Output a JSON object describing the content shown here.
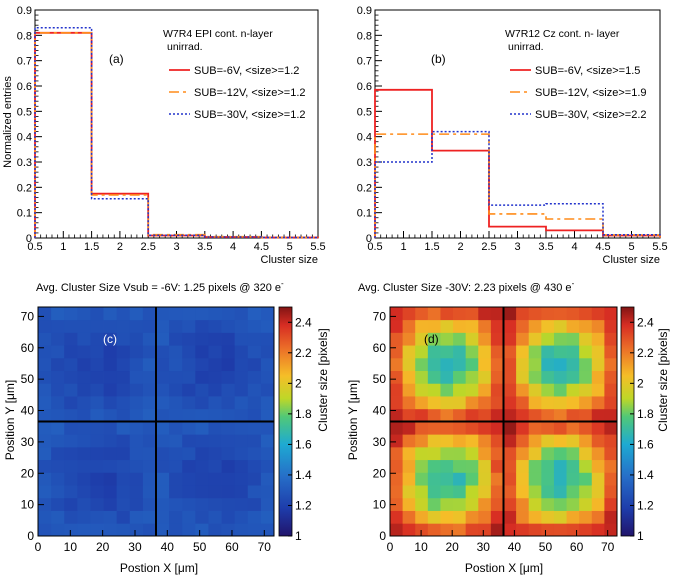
{
  "chart_data": [
    {
      "id": "a",
      "type": "histogram",
      "panel_label": "(a)",
      "annotation": [
        "W7R4 EPI cont. n-layer",
        "unirrad."
      ],
      "xlabel": "Cluster size",
      "ylabel": "Normalized entries",
      "xlim": [
        0.5,
        5.5
      ],
      "ylim": [
        0,
        0.9
      ],
      "xticks": [
        "0.5",
        "1",
        "1.5",
        "2",
        "2.5",
        "3",
        "3.5",
        "4",
        "4.5",
        "5",
        "5.5"
      ],
      "yticks": [
        "0",
        "0.1",
        "0.2",
        "0.3",
        "0.4",
        "0.5",
        "0.6",
        "0.7",
        "0.8",
        "0.9"
      ],
      "bin_edges": [
        0.5,
        1.5,
        2.5,
        3.5,
        4.5,
        5.5
      ],
      "series": [
        {
          "name": "SUB=-6V, <size>=1.2",
          "color": "#ee2222",
          "dash": "",
          "width": 1.8,
          "values": [
            0.81,
            0.175,
            0.01,
            0.004,
            0.002
          ]
        },
        {
          "name": "SUB=-12V, <size>=1.2",
          "color": "#ff8c1a",
          "dash": "10,4,3,4",
          "width": 1.6,
          "values": [
            0.81,
            0.17,
            0.013,
            0.005,
            0.002
          ]
        },
        {
          "name": "SUB=-30V, <size>=1.2",
          "color": "#2233cc",
          "dash": "2,2",
          "width": 1.5,
          "values": [
            0.83,
            0.155,
            0.011,
            0.004,
            0.002
          ]
        }
      ]
    },
    {
      "id": "b",
      "type": "histogram",
      "panel_label": "(b)",
      "annotation": [
        "W7R12 Cz cont. n- layer",
        "unirrad."
      ],
      "xlabel": "Cluster size",
      "ylabel": "",
      "xlim": [
        0.5,
        5.5
      ],
      "ylim": [
        0,
        0.9
      ],
      "xticks": [
        "0.5",
        "1",
        "1.5",
        "2",
        "2.5",
        "3",
        "3.5",
        "4",
        "4.5",
        "5",
        "5.5"
      ],
      "yticks": [
        "0",
        "0.1",
        "0.2",
        "0.3",
        "0.4",
        "0.5",
        "0.6",
        "0.7",
        "0.8",
        "0.9"
      ],
      "bin_edges": [
        0.5,
        1.5,
        2.5,
        3.5,
        4.5,
        5.5
      ],
      "series": [
        {
          "name": "SUB=-6V, <size>=1.5",
          "color": "#ee2222",
          "dash": "",
          "width": 1.8,
          "values": [
            0.585,
            0.345,
            0.045,
            0.03,
            0.01
          ]
        },
        {
          "name": "SUB=-12V, <size>=1.9",
          "color": "#ff8c1a",
          "dash": "10,4,3,4",
          "width": 1.6,
          "values": [
            0.41,
            0.41,
            0.095,
            0.075,
            0.012
          ]
        },
        {
          "name": "SUB=-30V, <size>=2.2",
          "color": "#2233cc",
          "dash": "2,2",
          "width": 1.5,
          "values": [
            0.3,
            0.42,
            0.13,
            0.135,
            0.013
          ]
        }
      ]
    },
    {
      "id": "c",
      "type": "heatmap",
      "panel_label": "(c)",
      "title": "Avg. Cluster Size Vsub = -6V: 1.25 pixels @ 320 e",
      "title_sup": "-",
      "xlabel": "Postion X [μm]",
      "ylabel": "Position Y [μm]",
      "zlabel": "Cluster size [pixels]",
      "xlim": [
        0,
        73
      ],
      "ylim": [
        0,
        73
      ],
      "zlim": [
        1,
        2.5
      ],
      "xticks": [
        0,
        10,
        20,
        30,
        40,
        50,
        60,
        70
      ],
      "yticks": [
        0,
        10,
        20,
        30,
        40,
        50,
        60,
        70
      ],
      "zticks": [
        "1",
        "1.2",
        "1.4",
        "1.6",
        "1.8",
        "2",
        "2.2",
        "2.4"
      ],
      "grid_bins": 18,
      "pixel_pitch_lines": [
        36.5
      ],
      "model": {
        "base": 1.2,
        "amp": 0.11,
        "period": 36.5
      }
    },
    {
      "id": "d",
      "type": "heatmap",
      "panel_label": "(d)",
      "title": "Avg. Cluster Size -30V: 2.23 pixels @ 430 e",
      "title_sup": "-",
      "xlabel": "Postion X [μm]",
      "ylabel": "Position Y [μm]",
      "zlabel": "Cluster size [pixels]",
      "xlim": [
        0,
        73
      ],
      "ylim": [
        0,
        73
      ],
      "zlim": [
        1,
        2.5
      ],
      "xticks": [
        0,
        10,
        20,
        30,
        40,
        50,
        60,
        70
      ],
      "yticks": [
        0,
        10,
        20,
        30,
        40,
        50,
        60,
        70
      ],
      "zticks": [
        "1",
        "1.2",
        "1.4",
        "1.6",
        "1.8",
        "2",
        "2.2",
        "2.4"
      ],
      "grid_bins": 18,
      "pixel_pitch_lines": [
        36.5
      ],
      "model": {
        "base": 2.48,
        "amp": 0.62,
        "period": 36.5
      }
    }
  ]
}
